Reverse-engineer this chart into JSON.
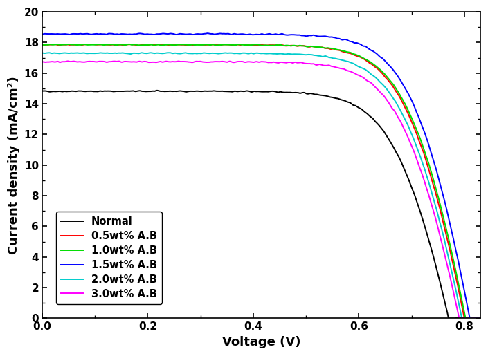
{
  "title": "",
  "xlabel": "Voltage (V)",
  "ylabel": "Current density (mA/cm²)",
  "xlim": [
    0.0,
    0.83
  ],
  "ylim": [
    0,
    20
  ],
  "xticks": [
    0.0,
    0.2,
    0.4,
    0.6,
    0.8
  ],
  "yticks": [
    0,
    2,
    4,
    6,
    8,
    10,
    12,
    14,
    16,
    18,
    20
  ],
  "curves": [
    {
      "label": "Normal",
      "color": "#000000",
      "jsc": 14.82,
      "voc": 0.77,
      "n": 1.8,
      "rs": 3.5,
      "noise": 0.04
    },
    {
      "label": "0.5wt% A.B",
      "color": "#ff0000",
      "jsc": 17.85,
      "voc": 0.8,
      "n": 1.8,
      "rs": 3.2,
      "noise": 0.04
    },
    {
      "label": "1.0wt% A.B",
      "color": "#00dd00",
      "jsc": 17.85,
      "voc": 0.802,
      "n": 1.8,
      "rs": 3.1,
      "noise": 0.04
    },
    {
      "label": "1.5wt% A.B",
      "color": "#0000ff",
      "jsc": 18.55,
      "voc": 0.81,
      "n": 1.8,
      "rs": 3.0,
      "noise": 0.05
    },
    {
      "label": "2.0wt% A.B",
      "color": "#00cccc",
      "jsc": 17.3,
      "voc": 0.795,
      "n": 1.8,
      "rs": 3.3,
      "noise": 0.04
    },
    {
      "label": "3.0wt% A.B",
      "color": "#ff00ff",
      "jsc": 16.75,
      "voc": 0.79,
      "n": 1.8,
      "rs": 3.4,
      "noise": 0.05
    }
  ],
  "legend_loc": "lower left",
  "linewidth": 1.4,
  "figsize": [
    7.05,
    5.15
  ],
  "dpi": 100
}
